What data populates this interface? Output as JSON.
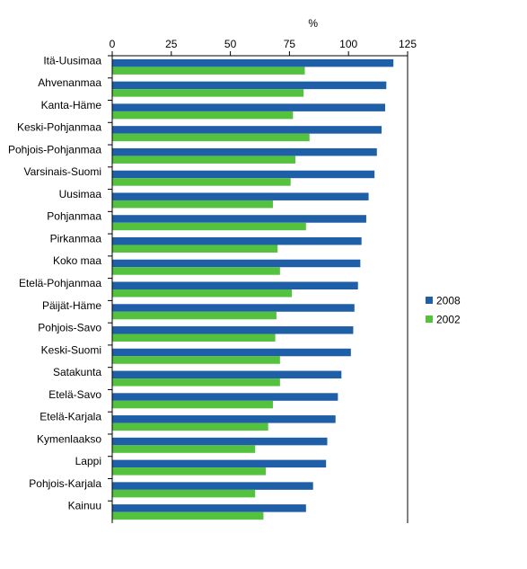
{
  "chart_data": {
    "type": "bar",
    "orientation": "horizontal",
    "unit_label": "%",
    "xlim": [
      0,
      125
    ],
    "xticks": [
      0,
      25,
      50,
      75,
      100,
      125
    ],
    "x_axis_position": "top",
    "grid": false,
    "legend_position": "right",
    "categories": [
      "Itä-Uusimaa",
      "Ahvenanmaa",
      "Kanta-Häme",
      "Keski-Pohjanmaa",
      "Pohjois-Pohjanmaa",
      "Varsinais-Suomi",
      "Uusimaa",
      "Pohjanmaa",
      "Pirkanmaa",
      "Koko maa",
      "Etelä-Pohjanmaa",
      "Päijät-Häme",
      "Pohjois-Savo",
      "Keski-Suomi",
      "Satakunta",
      "Etelä-Savo",
      "Etelä-Karjala",
      "Kymenlaakso",
      "Lappi",
      "Pohjois-Karjala",
      "Kainuu"
    ],
    "series": [
      {
        "name": "2008",
        "color": "#1f5fa8",
        "values": [
          119,
          116,
          115.5,
          114,
          112,
          111,
          108.5,
          107.5,
          105.5,
          105,
          104,
          102.5,
          102,
          101,
          97,
          95.5,
          94.5,
          91,
          90.5,
          85,
          82
        ]
      },
      {
        "name": "2002",
        "color": "#55c23f",
        "values": [
          81.5,
          81,
          76.5,
          83.5,
          77.5,
          75.5,
          68,
          82,
          70,
          71,
          76,
          69.5,
          69,
          71,
          71,
          68,
          66,
          60.5,
          65,
          60.5,
          64
        ]
      }
    ]
  }
}
